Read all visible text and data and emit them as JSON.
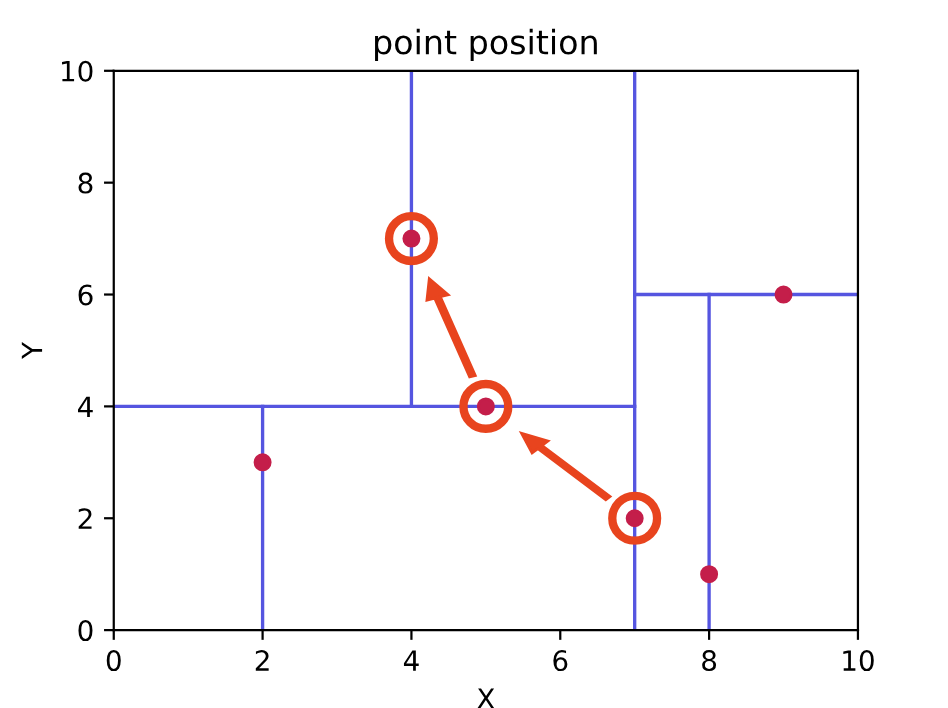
{
  "chart_data": {
    "type": "scatter",
    "title": "point position",
    "xlabel": "X",
    "ylabel": "Y",
    "xlim": [
      0,
      10
    ],
    "ylim": [
      0,
      10
    ],
    "xticks": [
      0,
      2,
      4,
      6,
      8,
      10
    ],
    "yticks": [
      0,
      2,
      4,
      6,
      8,
      10
    ],
    "grid": false,
    "legend": false,
    "series": [
      {
        "type": "line",
        "color": "#5555e0",
        "x": [
          7,
          7
        ],
        "values": [
          0,
          10
        ],
        "marker": "none"
      },
      {
        "type": "line",
        "color": "#5555e0",
        "x": [
          0,
          7
        ],
        "values": [
          4,
          4
        ],
        "marker": "none"
      },
      {
        "type": "line",
        "color": "#5555e0",
        "x": [
          2,
          2
        ],
        "values": [
          0,
          4
        ],
        "marker": "none"
      },
      {
        "type": "line",
        "color": "#5555e0",
        "x": [
          4,
          4
        ],
        "values": [
          4,
          10
        ],
        "marker": "none"
      },
      {
        "type": "line",
        "color": "#5555e0",
        "x": [
          7,
          10
        ],
        "values": [
          6,
          6
        ],
        "marker": "none"
      },
      {
        "type": "line",
        "color": "#5555e0",
        "x": [
          8,
          8
        ],
        "values": [
          0,
          6
        ],
        "marker": "none"
      },
      {
        "color": "#c41e4a",
        "x": [
          2,
          5,
          9,
          4,
          8,
          7
        ],
        "values": [
          3,
          4,
          6,
          7,
          1,
          2
        ],
        "marker": "circle"
      },
      {
        "type": "bubble",
        "color": "#e8441e",
        "x": [
          7,
          5,
          4
        ],
        "values": [
          2,
          4,
          7
        ],
        "sizes": [
          1,
          1,
          1
        ]
      }
    ]
  }
}
